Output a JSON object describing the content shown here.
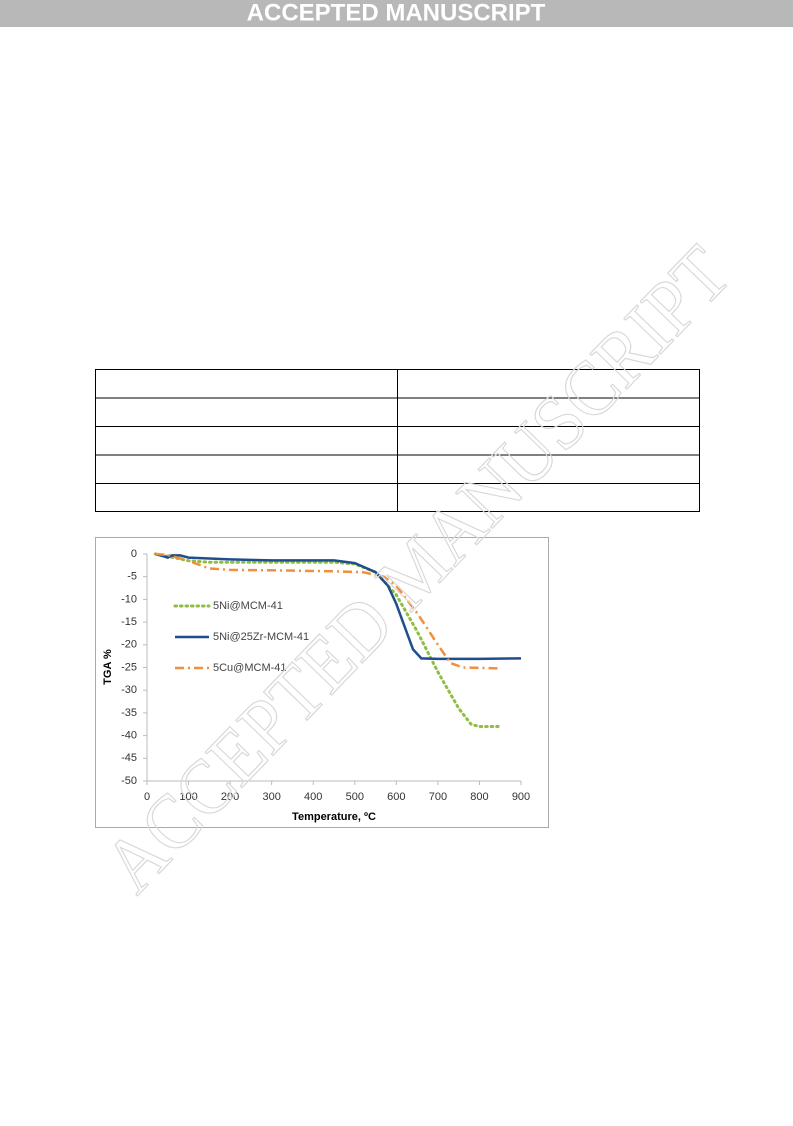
{
  "header": {
    "banner": "ACCEPTED MANUSCRIPT"
  },
  "watermark": "ACCEPTED MANUSCRIPT",
  "chart_data": {
    "type": "line",
    "x_label": "Temperature, ºC",
    "y_label": "TGA %",
    "xlim": [
      0,
      900
    ],
    "xticks": [
      0,
      100,
      200,
      300,
      400,
      500,
      600,
      700,
      800,
      900
    ],
    "ylim": [
      -50,
      0
    ],
    "yticks": [
      0,
      -5,
      -10,
      -15,
      -20,
      -25,
      -30,
      -35,
      -40,
      -45,
      -50
    ],
    "legend": "left",
    "series": [
      {
        "name": "5Ni@MCM-41",
        "color": "#8fbe44",
        "style": "dotted",
        "x": [
          20,
          50,
          100,
          150,
          300,
          450,
          500,
          550,
          600,
          650,
          700,
          750,
          780,
          800,
          845
        ],
        "values": [
          0,
          -0.5,
          -1.5,
          -1.8,
          -1.8,
          -1.8,
          -2.2,
          -4,
          -9,
          -17,
          -26,
          -34,
          -37.5,
          -38,
          -38
        ]
      },
      {
        "name": "5Ni@25Zr-MCM-41",
        "color": "#1f4e8c",
        "style": "solid",
        "x": [
          20,
          40,
          50,
          60,
          80,
          100,
          150,
          200,
          300,
          450,
          500,
          550,
          580,
          600,
          620,
          640,
          660,
          700,
          800,
          900
        ],
        "values": [
          0,
          -0.5,
          -0.8,
          -0.3,
          -0.3,
          -0.8,
          -1,
          -1.2,
          -1.4,
          -1.4,
          -2,
          -4,
          -7,
          -11,
          -16,
          -21,
          -23,
          -23.1,
          -23.1,
          -23
        ]
      },
      {
        "name": "5Cu@MCM-41",
        "color": "#f28e3c",
        "style": "dashdot",
        "x": [
          20,
          50,
          100,
          150,
          200,
          300,
          450,
          520,
          570,
          600,
          650,
          700,
          730,
          760,
          850
        ],
        "values": [
          0,
          -0.2,
          -1.5,
          -3.2,
          -3.5,
          -3.6,
          -3.8,
          -4,
          -5,
          -7,
          -13,
          -20,
          -24,
          -25,
          -25.2
        ]
      }
    ]
  }
}
